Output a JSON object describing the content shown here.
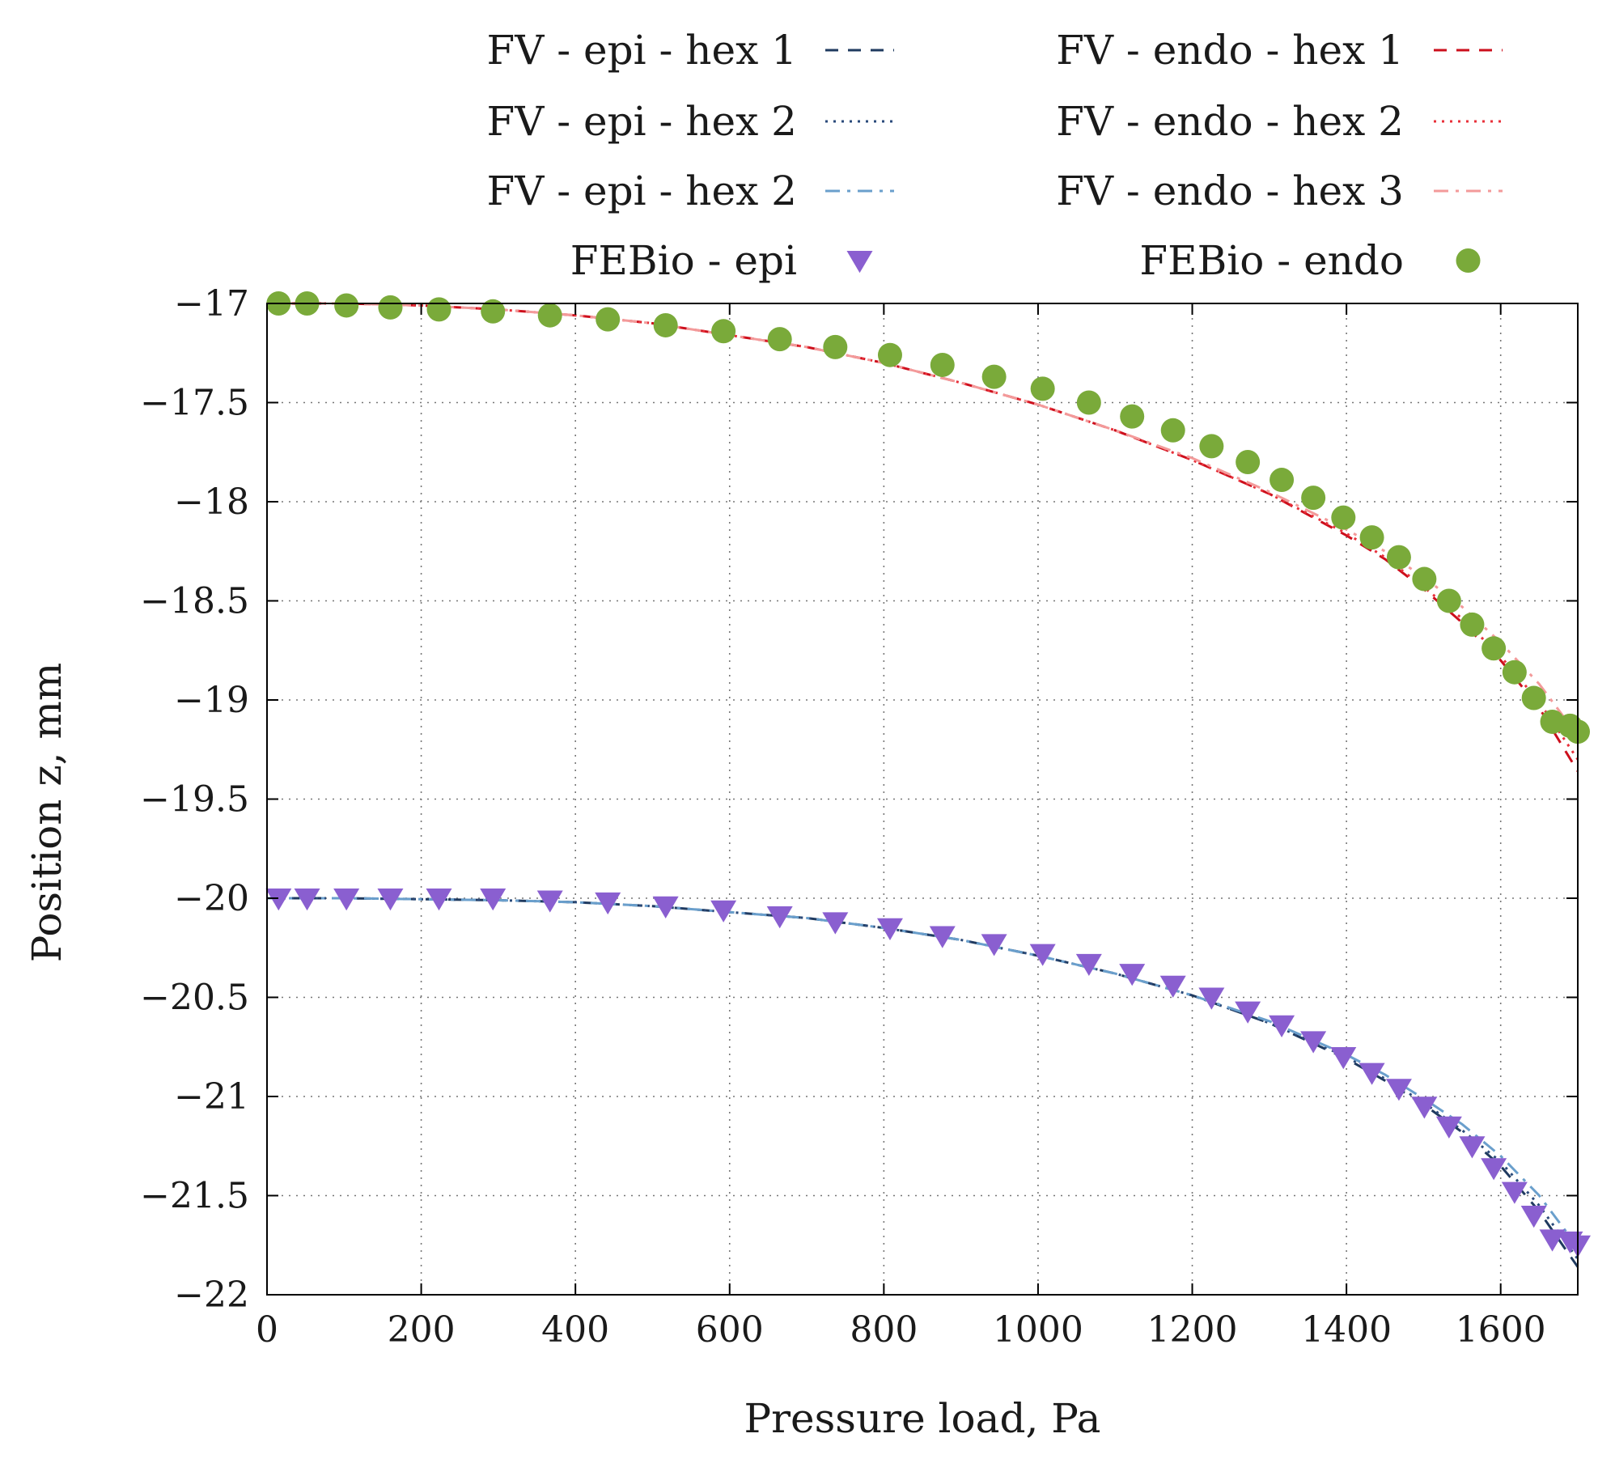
{
  "chart_data": {
    "type": "line",
    "title": "",
    "xlabel": "Pressure load, Pa",
    "ylabel": "Position z, mm",
    "xlim": [
      0,
      1700
    ],
    "ylim": [
      -22,
      -17
    ],
    "xticks": [
      0,
      200,
      400,
      600,
      800,
      1000,
      1200,
      1400,
      1600
    ],
    "yticks": [
      -17,
      -17.5,
      -18,
      -18.5,
      -19,
      -19.5,
      -20,
      -20.5,
      -21,
      -21.5,
      -22
    ],
    "ytick_labels": [
      "−17",
      "−17.5",
      "−18",
      "−18.5",
      "−19",
      "−19.5",
      "−20",
      "−20.5",
      "−21",
      "−21.5",
      "−22"
    ],
    "grid": true,
    "legend_position": "top",
    "series": [
      {
        "name": "FV - epi - hex 1",
        "kind": "line",
        "style": "dashed",
        "color": "#1f3a5f",
        "x": [
          0,
          100,
          200,
          300,
          400,
          500,
          600,
          700,
          800,
          900,
          1000,
          1100,
          1200,
          1300,
          1400,
          1450,
          1500,
          1550,
          1600,
          1650,
          1700
        ],
        "y": [
          -20.0,
          -20.0,
          -20.005,
          -20.01,
          -20.02,
          -20.04,
          -20.07,
          -20.1,
          -20.15,
          -20.21,
          -20.29,
          -20.38,
          -20.49,
          -20.63,
          -20.81,
          -20.92,
          -21.04,
          -21.18,
          -21.35,
          -21.58,
          -21.86
        ]
      },
      {
        "name": "FV - epi - hex 2",
        "kind": "line",
        "style": "dotted",
        "color": "#2a4a7a",
        "x": [
          0,
          100,
          200,
          300,
          400,
          500,
          600,
          700,
          800,
          900,
          1000,
          1100,
          1200,
          1300,
          1400,
          1450,
          1500,
          1550,
          1600,
          1650,
          1700
        ],
        "y": [
          -20.0,
          -20.0,
          -20.005,
          -20.01,
          -20.02,
          -20.04,
          -20.07,
          -20.1,
          -20.15,
          -20.21,
          -20.29,
          -20.38,
          -20.49,
          -20.63,
          -20.8,
          -20.91,
          -21.03,
          -21.17,
          -21.33,
          -21.55,
          -21.82
        ]
      },
      {
        "name": "FV - epi - hex 2",
        "kind": "line",
        "style": "dashdot",
        "color": "#6a9fcc",
        "x": [
          0,
          100,
          200,
          300,
          400,
          500,
          600,
          700,
          800,
          900,
          1000,
          1100,
          1200,
          1300,
          1400,
          1450,
          1500,
          1550,
          1600,
          1650,
          1700
        ],
        "y": [
          -20.0,
          -20.0,
          -20.005,
          -20.01,
          -20.02,
          -20.04,
          -20.07,
          -20.1,
          -20.15,
          -20.21,
          -20.29,
          -20.38,
          -20.49,
          -20.62,
          -20.79,
          -20.89,
          -21.01,
          -21.14,
          -21.3,
          -21.5,
          -21.76
        ]
      },
      {
        "name": "FEBio - epi",
        "kind": "marker",
        "marker": "triangle-down",
        "color": "#8a5fd0",
        "x": [
          15,
          52,
          103,
          160,
          223,
          293,
          367,
          442,
          517,
          592,
          665,
          737,
          808,
          876,
          943,
          1006,
          1066,
          1122,
          1175,
          1225,
          1272,
          1316,
          1357,
          1396,
          1433,
          1468,
          1501,
          1533,
          1563,
          1591,
          1618,
          1643,
          1667,
          1690,
          1700
        ],
        "y": [
          -20.0,
          -20.0,
          -20.0,
          -20.0,
          -20.0,
          -20.0,
          -20.01,
          -20.02,
          -20.04,
          -20.06,
          -20.09,
          -20.12,
          -20.15,
          -20.19,
          -20.23,
          -20.28,
          -20.33,
          -20.38,
          -20.44,
          -20.5,
          -20.57,
          -20.64,
          -20.72,
          -20.8,
          -20.88,
          -20.96,
          -21.05,
          -21.15,
          -21.25,
          -21.36,
          -21.48,
          -21.6,
          -21.72,
          -21.73,
          -21.75
        ]
      },
      {
        "name": "FV - endo - hex 1",
        "kind": "line",
        "style": "dashed",
        "color": "#cc0f1c",
        "x": [
          0,
          100,
          200,
          300,
          400,
          500,
          600,
          700,
          800,
          900,
          1000,
          1100,
          1200,
          1300,
          1400,
          1450,
          1500,
          1550,
          1600,
          1650,
          1700
        ],
        "y": [
          -17.0,
          -17.0,
          -17.01,
          -17.03,
          -17.06,
          -17.1,
          -17.16,
          -17.22,
          -17.3,
          -17.4,
          -17.51,
          -17.64,
          -17.79,
          -17.96,
          -18.17,
          -18.29,
          -18.44,
          -18.61,
          -18.8,
          -19.04,
          -19.36
        ]
      },
      {
        "name": "FV - endo - hex 2",
        "kind": "line",
        "style": "dotted",
        "color": "#e8303a",
        "x": [
          0,
          100,
          200,
          300,
          400,
          500,
          600,
          700,
          800,
          900,
          1000,
          1100,
          1200,
          1300,
          1400,
          1450,
          1500,
          1550,
          1600,
          1650,
          1700
        ],
        "y": [
          -17.0,
          -17.0,
          -17.01,
          -17.03,
          -17.06,
          -17.1,
          -17.16,
          -17.22,
          -17.3,
          -17.4,
          -17.51,
          -17.64,
          -17.79,
          -17.96,
          -18.16,
          -18.28,
          -18.43,
          -18.59,
          -18.78,
          -19.01,
          -19.3
        ]
      },
      {
        "name": "FV - endo - hex 3",
        "kind": "line",
        "style": "dashdot",
        "color": "#f39a9a",
        "x": [
          0,
          100,
          200,
          300,
          400,
          500,
          600,
          700,
          800,
          900,
          1000,
          1100,
          1200,
          1300,
          1400,
          1450,
          1500,
          1550,
          1600,
          1650,
          1700
        ],
        "y": [
          -17.0,
          -17.0,
          -17.01,
          -17.03,
          -17.06,
          -17.1,
          -17.16,
          -17.22,
          -17.3,
          -17.4,
          -17.51,
          -17.64,
          -17.78,
          -17.95,
          -18.14,
          -18.25,
          -18.38,
          -18.53,
          -18.71,
          -18.92,
          -19.18
        ]
      },
      {
        "name": "FEBio - endo",
        "kind": "marker",
        "marker": "circle",
        "color": "#7aaa3a",
        "x": [
          15,
          52,
          103,
          160,
          223,
          293,
          367,
          442,
          517,
          592,
          665,
          737,
          808,
          876,
          943,
          1006,
          1066,
          1122,
          1175,
          1225,
          1272,
          1316,
          1357,
          1396,
          1433,
          1468,
          1501,
          1533,
          1563,
          1591,
          1618,
          1643,
          1667,
          1690,
          1700
        ],
        "y": [
          -17.0,
          -17.0,
          -17.01,
          -17.02,
          -17.03,
          -17.04,
          -17.06,
          -17.08,
          -17.11,
          -17.14,
          -17.18,
          -17.22,
          -17.26,
          -17.31,
          -17.37,
          -17.43,
          -17.5,
          -17.57,
          -17.64,
          -17.72,
          -17.8,
          -17.89,
          -17.98,
          -18.08,
          -18.18,
          -18.28,
          -18.39,
          -18.5,
          -18.62,
          -18.74,
          -18.86,
          -18.99,
          -19.11,
          -19.13,
          -19.16
        ]
      }
    ]
  }
}
